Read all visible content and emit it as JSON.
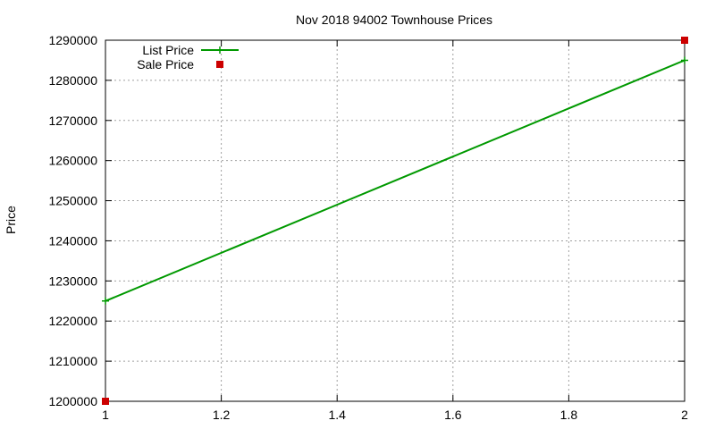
{
  "chart_data": {
    "type": "line",
    "title": "Nov 2018 94002 Townhouse Prices",
    "xlabel": "",
    "ylabel": "Price",
    "xlim": [
      1,
      2
    ],
    "ylim": [
      1200000,
      1290000
    ],
    "x_ticks": [
      1,
      1.2,
      1.4,
      1.6,
      1.8,
      2
    ],
    "x_tick_labels": [
      "1",
      "1.2",
      "1.4",
      "1.6",
      "1.8",
      "2"
    ],
    "y_ticks": [
      1200000,
      1210000,
      1220000,
      1230000,
      1240000,
      1250000,
      1260000,
      1270000,
      1280000,
      1290000
    ],
    "y_tick_labels": [
      "1200000",
      "1210000",
      "1220000",
      "1230000",
      "1240000",
      "1250000",
      "1260000",
      "1270000",
      "1280000",
      "1290000"
    ],
    "grid": true,
    "legend_position": "top-left",
    "series": [
      {
        "name": "List Price",
        "style": "line+cross",
        "color": "#009900",
        "x": [
          1,
          2
        ],
        "y": [
          1225000,
          1285000
        ]
      },
      {
        "name": "Sale Price",
        "style": "square",
        "color": "#cc0000",
        "x": [
          1,
          2
        ],
        "y": [
          1200000,
          1290000
        ]
      }
    ]
  }
}
